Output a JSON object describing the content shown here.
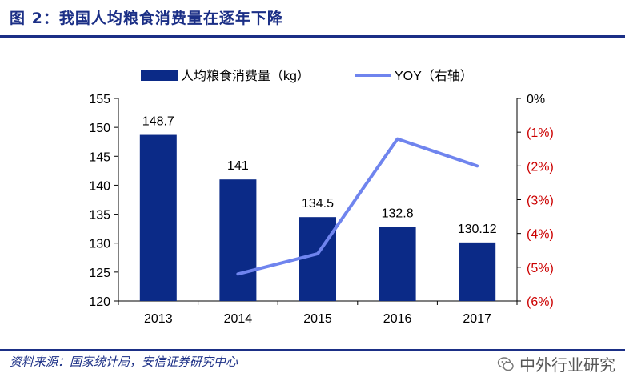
{
  "header": {
    "title": "图 2：我国人均粮食消费量在逐年下降"
  },
  "footer": {
    "source": "资料来源：国家统计局，安信证券研究中心",
    "watermark": "中外行业研究"
  },
  "colors": {
    "bar": "#0b2a87",
    "line": "#6f84ee",
    "negative": "#cc0000",
    "axis": "#000000",
    "brand": "#1b2f86"
  },
  "chart_data": {
    "type": "bar+line",
    "categories": [
      "2013",
      "2014",
      "2015",
      "2016",
      "2017"
    ],
    "series": [
      {
        "name": "人均粮食消费量（kg）",
        "type": "bar",
        "axis": "left",
        "values": [
          148.7,
          141,
          134.5,
          132.8,
          130.12
        ],
        "labels": [
          "148.7",
          "141",
          "134.5",
          "132.8",
          "130.12"
        ]
      },
      {
        "name": "YOY（右轴）",
        "type": "line",
        "axis": "right",
        "values": [
          null,
          -5.2,
          -4.6,
          -1.2,
          -2.0
        ]
      }
    ],
    "y_left": {
      "min": 120,
      "max": 155,
      "step": 5,
      "ticks": [
        "120",
        "125",
        "130",
        "135",
        "140",
        "145",
        "150",
        "155"
      ]
    },
    "y_right": {
      "min": -6,
      "max": 0,
      "step": 1,
      "ticks": [
        "(6%)",
        "(5%)",
        "(4%)",
        "(3%)",
        "(2%)",
        "(1%)",
        "0%"
      ]
    },
    "legend": [
      "人均粮食消费量（kg）",
      "YOY（右轴）"
    ],
    "grid": false
  }
}
